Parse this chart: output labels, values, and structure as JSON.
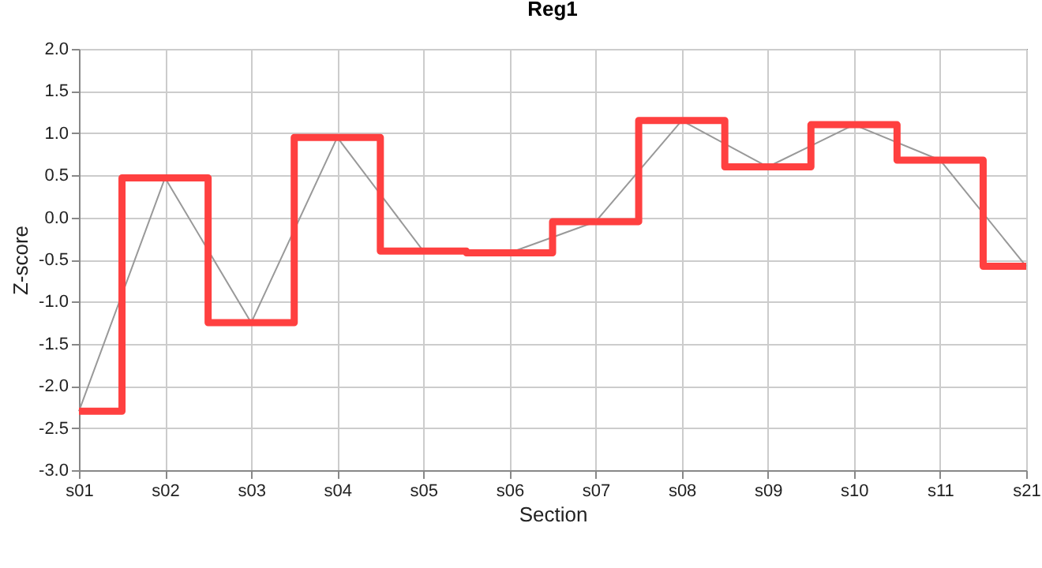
{
  "chart_data": {
    "type": "line",
    "title": "Reg1",
    "xlabel": "Section",
    "ylabel": "Z-score",
    "categories": [
      "s01",
      "s02",
      "s03",
      "s04",
      "s05",
      "s06",
      "s07",
      "s08",
      "s09",
      "s10",
      "s11",
      "s21"
    ],
    "series": [
      {
        "type": "line",
        "color": "#999999",
        "values": [
          -2.3,
          0.47,
          -1.25,
          0.95,
          -0.4,
          -0.42,
          -0.05,
          1.15,
          0.6,
          1.1,
          0.68,
          -0.58
        ]
      },
      {
        "type": "step",
        "color": "#ff4040",
        "values": [
          -2.3,
          0.47,
          -1.25,
          0.95,
          -0.4,
          -0.42,
          -0.05,
          1.15,
          0.6,
          1.1,
          0.68,
          -0.58
        ]
      }
    ],
    "ylim": [
      -3,
      2
    ],
    "yticks": [
      {
        "value": -3,
        "label": "-3.0"
      },
      {
        "value": -2.5,
        "label": "-2.5"
      },
      {
        "value": -2,
        "label": "-2.0"
      },
      {
        "value": -1.5,
        "label": "-1.5"
      },
      {
        "value": -1,
        "label": "-1.0"
      },
      {
        "value": -0.5,
        "label": "-0.5"
      },
      {
        "value": 0,
        "label": "0.0"
      },
      {
        "value": 0.5,
        "label": "0.5"
      },
      {
        "value": 1,
        "label": "1.0"
      },
      {
        "value": 1.5,
        "label": "1.5"
      },
      {
        "value": 2,
        "label": "2.0"
      }
    ],
    "grid": true,
    "marker": "none"
  }
}
